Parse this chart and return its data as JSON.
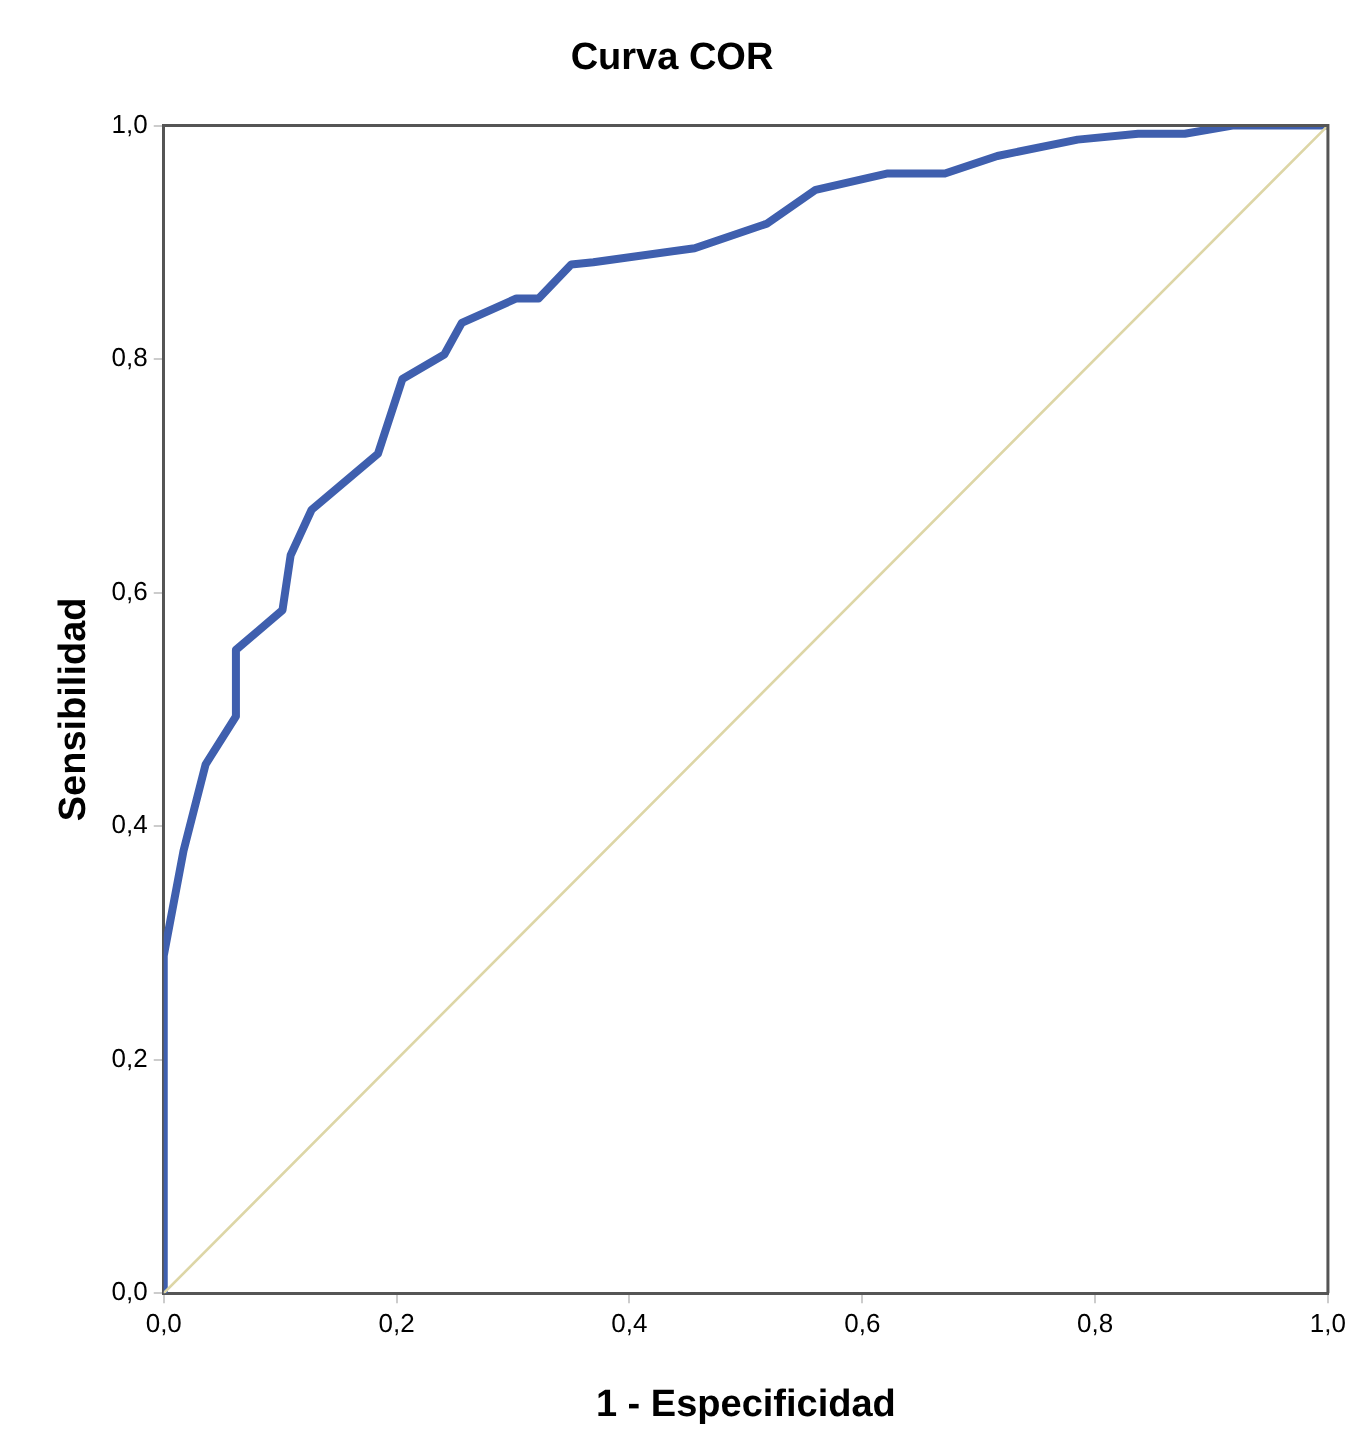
{
  "chart_data": {
    "type": "line",
    "title": "Curva COR",
    "xlabel": "1 - Especificidad",
    "ylabel": "Sensibilidad",
    "series": [
      {
        "color": "#3f5fae",
        "x": [
          0,
          0,
          0.017,
          0.036,
          0.062,
          0.062,
          0.102,
          0.109,
          0.127,
          0.184,
          0.205,
          0.241,
          0.256,
          0.303,
          0.322,
          0.35,
          0.369,
          0.456,
          0.518,
          0.56,
          0.622,
          0.671,
          0.716,
          0.785,
          0.837,
          0.877,
          0.918,
          1
        ],
        "values": [
          0,
          0.289,
          0.379,
          0.453,
          0.494,
          0.551,
          0.585,
          0.632,
          0.671,
          0.719,
          0.783,
          0.804,
          0.831,
          0.852,
          0.852,
          0.881,
          0.883,
          0.895,
          0.916,
          0.945,
          0.959,
          0.959,
          0.974,
          0.988,
          0.993,
          0.993,
          1,
          1
        ]
      },
      {
        "color": "#ddd6a6",
        "x": [
          0,
          1
        ],
        "values": [
          0,
          1
        ]
      }
    ],
    "xlim": [
      0,
      1
    ],
    "ylim": [
      0,
      1
    ],
    "xticks": [
      {
        "value": 0,
        "label": "0,0"
      },
      {
        "value": 0.2,
        "label": "0,2"
      },
      {
        "value": 0.4,
        "label": "0,4"
      },
      {
        "value": 0.6,
        "label": "0,6"
      },
      {
        "value": 0.8,
        "label": "0,8"
      },
      {
        "value": 1,
        "label": "1,0"
      }
    ],
    "yticks": [
      {
        "value": 0,
        "label": "0,0"
      },
      {
        "value": 0.2,
        "label": "0,2"
      },
      {
        "value": 0.4,
        "label": "0,4"
      },
      {
        "value": 0.6,
        "label": "0,6"
      },
      {
        "value": 0.8,
        "label": "0,8"
      },
      {
        "value": 1,
        "label": "1,0"
      }
    ],
    "grid": false,
    "legend": false,
    "marker": "none",
    "line_style": "solid"
  }
}
